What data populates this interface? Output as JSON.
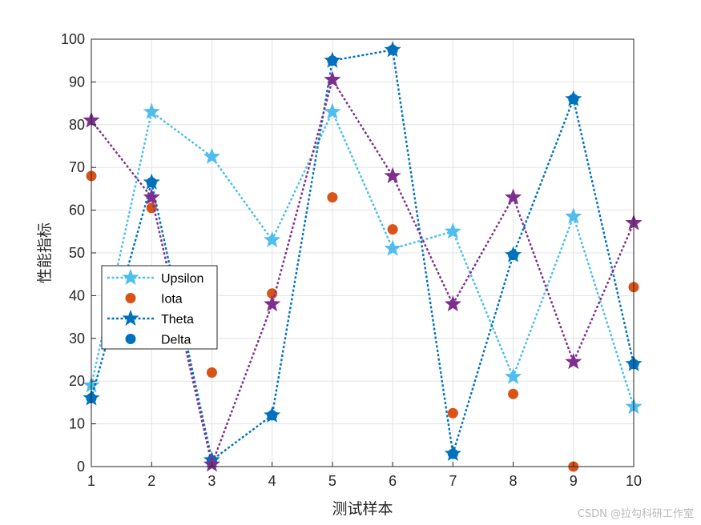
{
  "chart_data": {
    "type": "line",
    "title": "",
    "xlabel": "测试样本",
    "ylabel": "性能指标",
    "x": [
      1,
      2,
      3,
      4,
      5,
      6,
      7,
      8,
      9,
      10
    ],
    "xlim": [
      1,
      10
    ],
    "ylim": [
      0,
      100
    ],
    "xticks": [
      "1",
      "2",
      "3",
      "4",
      "5",
      "6",
      "7",
      "8",
      "9",
      "10"
    ],
    "yticks": [
      "0",
      "10",
      "20",
      "30",
      "40",
      "50",
      "60",
      "70",
      "80",
      "90",
      "100"
    ],
    "grid": true,
    "legend_position": "middle-left",
    "series": [
      {
        "name": "Upsilon",
        "color": "#4DBEEE",
        "line": "dotted",
        "marker": "star",
        "values": [
          19,
          83,
          72.5,
          53,
          83,
          51,
          55,
          21,
          58.5,
          14
        ]
      },
      {
        "name": "Iota",
        "color": "#D95319",
        "line": "none",
        "marker": "circle",
        "values": [
          68,
          60.5,
          22,
          40.5,
          63,
          55.5,
          12.5,
          17,
          0,
          42
        ]
      },
      {
        "name": "Theta",
        "color": "#0072BD",
        "line": "dotted",
        "marker": "star",
        "values": [
          16,
          66.5,
          1.5,
          12,
          95,
          97.5,
          3,
          49.5,
          86,
          24
        ]
      },
      {
        "name": "Delta",
        "color": "#0072BD",
        "line": "none",
        "marker": "circle",
        "values": [
          16,
          66.5,
          1.5,
          12,
          95,
          97.5,
          3,
          49.5,
          86,
          24
        ]
      },
      {
        "name": "",
        "color": "#7E2F8E",
        "line": "dotted",
        "marker": "star",
        "values": [
          81,
          63,
          0.5,
          38,
          90.5,
          68,
          38,
          63,
          24.5,
          57
        ]
      }
    ],
    "legend": [
      "Upsilon",
      "Iota",
      "Theta",
      "Delta"
    ]
  },
  "watermark": "CSDN @拉勾科研工作室"
}
